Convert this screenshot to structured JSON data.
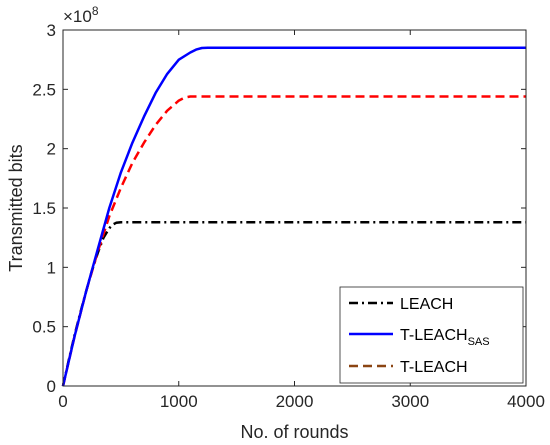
{
  "chart_data": {
    "type": "line",
    "xlabel": "No. of rounds",
    "ylabel": "Transmitted bits",
    "xlim": [
      0,
      4000
    ],
    "ylim": [
      0,
      3
    ],
    "y_multiplier_label": "×10",
    "y_multiplier_exponent": "8",
    "xticks": [
      0,
      1000,
      2000,
      3000,
      4000
    ],
    "yticks": [
      0,
      0.5,
      1,
      1.5,
      2,
      2.5,
      3
    ],
    "xtick_labels": [
      "0",
      "1000",
      "2000",
      "3000",
      "4000"
    ],
    "ytick_labels": [
      "0",
      "0.5",
      "1",
      "1.5",
      "2",
      "2.5",
      "3"
    ],
    "grid": false,
    "legend_position": "bottom-right",
    "series": [
      {
        "name": "LEACH",
        "legend_label": "LEACH",
        "color": "#000000",
        "line_style": "dash-dot",
        "x": [
          0,
          50,
          100,
          150,
          200,
          250,
          300,
          350,
          400,
          430,
          460,
          500,
          600,
          800,
          1000,
          2000,
          3000,
          4000
        ],
        "y": [
          0,
          0.22,
          0.43,
          0.62,
          0.8,
          0.97,
          1.12,
          1.25,
          1.33,
          1.36,
          1.375,
          1.38,
          1.38,
          1.38,
          1.38,
          1.38,
          1.38,
          1.38
        ]
      },
      {
        "name": "T-LEACH_SAS",
        "legend_label": "T-LEACH",
        "legend_subscript": "SAS",
        "color": "#0000ff",
        "line_style": "solid",
        "x": [
          0,
          100,
          200,
          300,
          400,
          500,
          600,
          700,
          800,
          900,
          1000,
          1100,
          1150,
          1200,
          1250,
          1300,
          2000,
          3000,
          4000
        ],
        "y": [
          0,
          0.42,
          0.8,
          1.15,
          1.5,
          1.8,
          2.05,
          2.27,
          2.47,
          2.63,
          2.75,
          2.81,
          2.835,
          2.848,
          2.85,
          2.85,
          2.85,
          2.85,
          2.85
        ]
      },
      {
        "name": "T-LEACH",
        "legend_label": "T-LEACH",
        "color": "#ff0000",
        "line_style": "dashed",
        "x": [
          0,
          100,
          200,
          300,
          400,
          500,
          600,
          700,
          800,
          900,
          1000,
          1050,
          1100,
          1200,
          2000,
          3000,
          4000
        ],
        "y": [
          0,
          0.42,
          0.8,
          1.13,
          1.43,
          1.67,
          1.88,
          2.05,
          2.2,
          2.32,
          2.405,
          2.43,
          2.44,
          2.44,
          2.44,
          2.44,
          2.44
        ]
      }
    ],
    "legend_order": [
      0,
      2,
      1
    ],
    "legend_colors": [
      "#000000",
      "#0000ff",
      "#8b4513"
    ]
  }
}
